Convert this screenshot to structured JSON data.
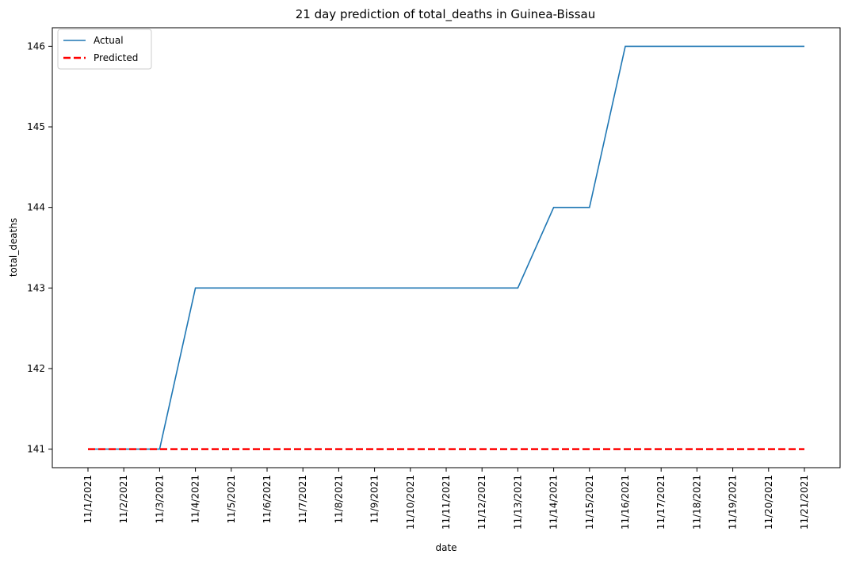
{
  "chart_data": {
    "type": "line",
    "title": "21 day prediction of total_deaths in Guinea-Bissau",
    "xlabel": "date",
    "ylabel": "total_deaths",
    "categories": [
      "11/1/2021",
      "11/2/2021",
      "11/3/2021",
      "11/4/2021",
      "11/5/2021",
      "11/6/2021",
      "11/7/2021",
      "11/8/2021",
      "11/9/2021",
      "11/10/2021",
      "11/11/2021",
      "11/12/2021",
      "11/13/2021",
      "11/14/2021",
      "11/15/2021",
      "11/16/2021",
      "11/17/2021",
      "11/18/2021",
      "11/19/2021",
      "11/20/2021",
      "11/21/2021"
    ],
    "yticks": [
      141,
      142,
      143,
      144,
      145,
      146
    ],
    "ylim": [
      140.77,
      146.23
    ],
    "grid": false,
    "legend_position": "top-left",
    "series": [
      {
        "name": "Actual",
        "color": "#1f77b4",
        "style": "solid",
        "values": [
          141,
          141,
          141,
          143,
          143,
          143,
          143,
          143,
          143,
          143,
          143,
          143,
          143,
          144,
          144,
          146,
          146,
          146,
          146,
          146,
          146
        ]
      },
      {
        "name": "Predicted",
        "color": "#ff0000",
        "style": "dashed",
        "values": [
          141,
          141,
          141,
          141,
          141,
          141,
          141,
          141,
          141,
          141,
          141,
          141,
          141,
          141,
          141,
          141,
          141,
          141,
          141,
          141,
          141
        ]
      }
    ]
  }
}
